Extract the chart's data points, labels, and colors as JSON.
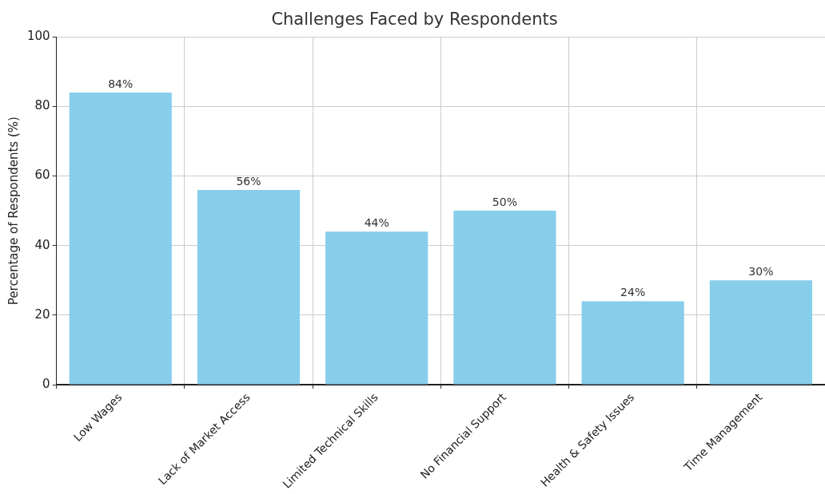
{
  "chart_data": {
    "type": "bar",
    "title": "Challenges Faced by Respondents",
    "ylabel": "Percentage of Respondents (%)",
    "categories": [
      "Low Wages",
      "Lack of Market Access",
      "Limited Technical Skills",
      "No Financial Support",
      "Health & Safety Issues",
      "Time Management"
    ],
    "values": [
      84,
      56,
      44,
      50,
      24,
      30
    ],
    "value_labels": [
      "84%",
      "56%",
      "44%",
      "50%",
      "24%",
      "30%"
    ],
    "color": "#87ceeb",
    "ylim": [
      0,
      100
    ],
    "yticks": [
      0,
      20,
      40,
      60,
      80,
      100
    ],
    "grid": true,
    "legend": false
  }
}
